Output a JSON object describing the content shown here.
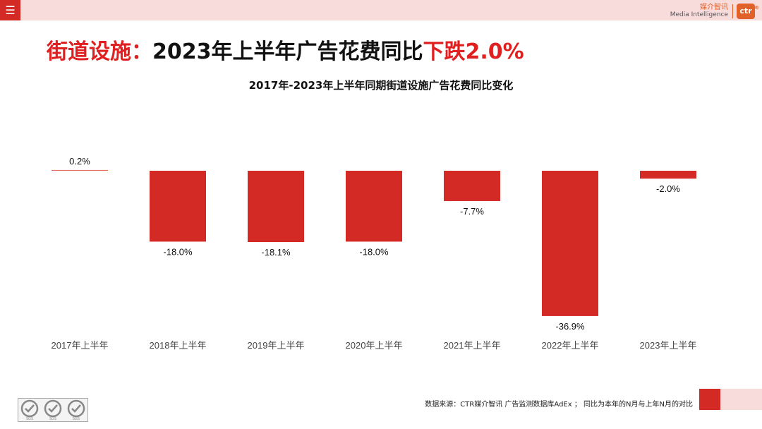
{
  "topbar": {
    "menu_icon": "menu-icon",
    "brand_cn": "媒介智讯",
    "brand_en": "Media Intelligence",
    "brand_logo": "ctr",
    "brand_reg": "®"
  },
  "headline": {
    "part1": "街道设施：",
    "part2": "2023年上半年广告花费同比",
    "part3": "下跌2.0%"
  },
  "colors": {
    "accent": "#d42a25",
    "headline_red": "#e02020",
    "pink": "#f8dcdc",
    "positive_line": "#e07060"
  },
  "chart_data": {
    "type": "bar",
    "title": "2017年-2023年上半年同期街道设施广告花费同比变化",
    "categories": [
      "2017年上半年",
      "2018年上半年",
      "2019年上半年",
      "2020年上半年",
      "2021年上半年",
      "2022年上半年",
      "2023年上半年"
    ],
    "values": [
      0.2,
      -18.0,
      -18.1,
      -18.0,
      -7.7,
      -36.9,
      -2.0
    ],
    "labels": [
      "0.2%",
      "-18.0%",
      "-18.1%",
      "-18.0%",
      "-7.7%",
      "-36.9%",
      "-2.0%"
    ],
    "ylim": [
      -36.9,
      0.2
    ],
    "grid": false,
    "xlabel": "",
    "ylabel": ""
  },
  "footer": {
    "note": "数据来源：CTR媒介智讯 广告监测数据库AdEx ；  同比为本年的N月与上年N月的对比",
    "cert_icons": [
      "sgs-certification-icon",
      "sgs-certification-icon",
      "sgs-certification-icon"
    ],
    "cert_label": "SGS"
  }
}
